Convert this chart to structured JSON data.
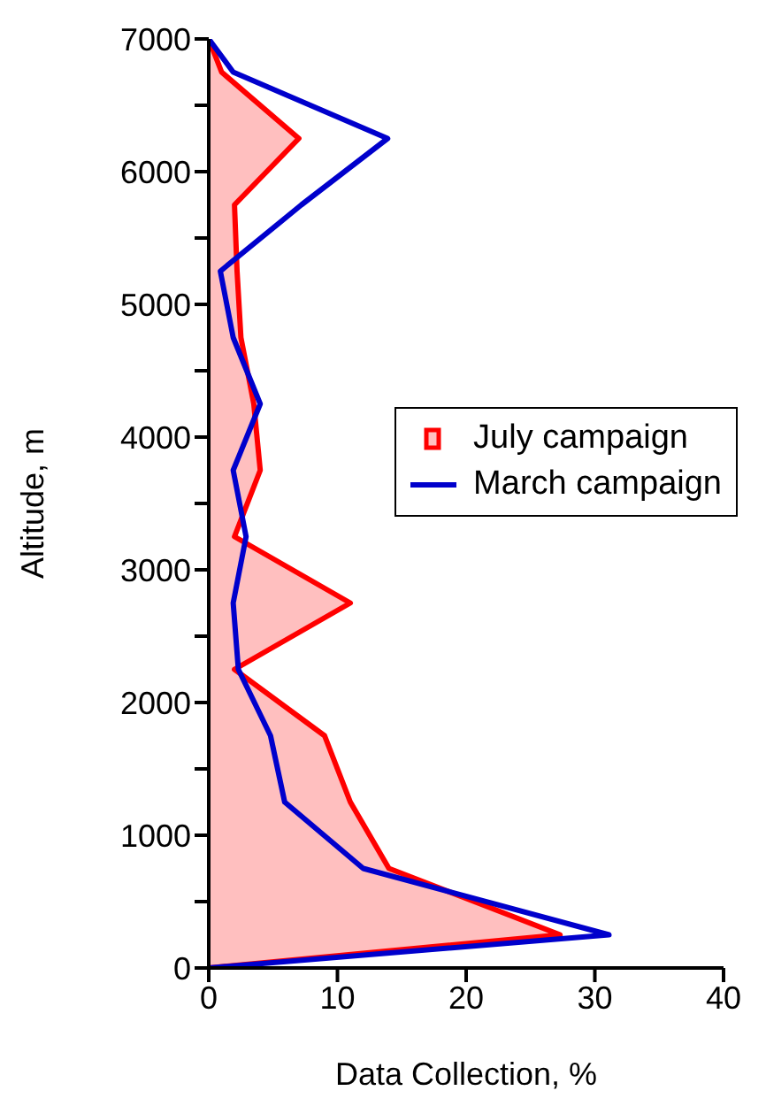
{
  "chart_data": {
    "type": "area",
    "orientation": "horizontal",
    "xlabel": "Data Collection, %",
    "ylabel": "Altitude, m",
    "x": [
      0,
      250,
      750,
      1250,
      1750,
      2250,
      2750,
      3250,
      3750,
      4250,
      4750,
      5250,
      5750,
      6250,
      6750,
      7000
    ],
    "series": [
      {
        "name": "July campaign",
        "color": "#ff0000",
        "values": [
          0,
          27.3,
          14,
          11,
          9,
          2,
          11,
          2,
          4,
          3.5,
          2.5,
          2.2,
          2,
          7,
          1,
          0
        ]
      },
      {
        "name": "March campaign",
        "type": "line",
        "color": "#0000cc",
        "values": [
          0,
          31.1,
          12,
          5.9,
          4.8,
          2.3,
          1.9,
          2.9,
          1.9,
          4,
          1.9,
          0.9,
          7.2,
          13.9,
          1.9,
          0
        ]
      }
    ],
    "xlim": [
      0,
      40
    ],
    "xticks": [
      0,
      10,
      20,
      30,
      40
    ],
    "ylim": [
      0,
      7000
    ],
    "yticks": [
      0,
      {
        "value": 500,
        "label": null
      },
      1000,
      {
        "value": 1500,
        "label": null
      },
      2000,
      {
        "value": 2500,
        "label": null
      },
      3000,
      {
        "value": 3500,
        "label": null
      },
      4000,
      {
        "value": 4500,
        "label": null
      },
      5000,
      {
        "value": 5500,
        "label": null
      },
      6000,
      {
        "value": 6500,
        "label": null
      },
      7000
    ],
    "legend": "right",
    "grid": false,
    "marker": "none"
  }
}
